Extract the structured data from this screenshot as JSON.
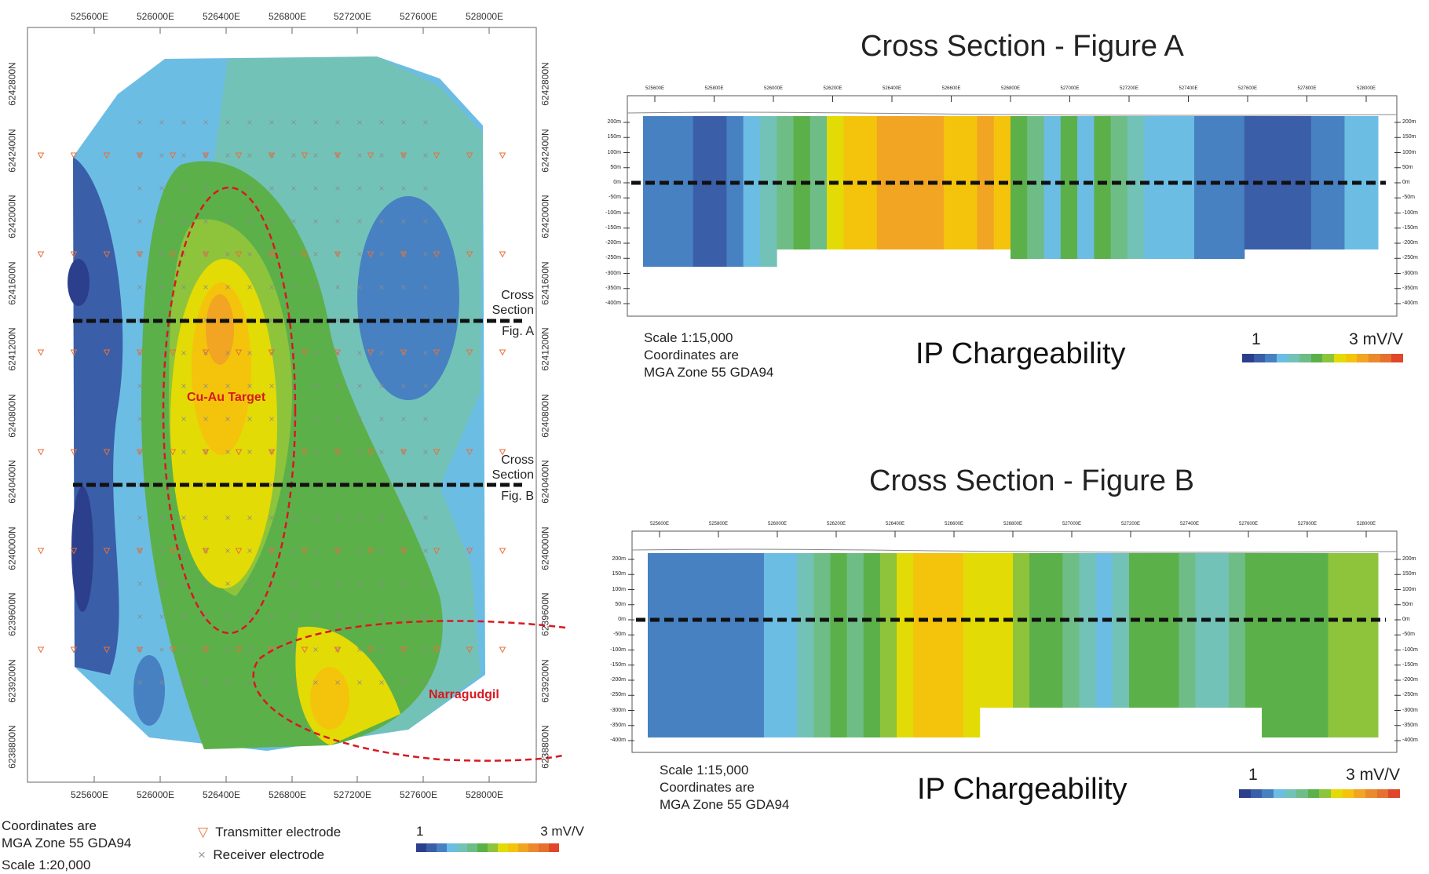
{
  "map": {
    "eastings": [
      "525600E",
      "526000E",
      "526400E",
      "526800E",
      "527200E",
      "527600E",
      "528000E"
    ],
    "northings": [
      "6242800N",
      "6242400N",
      "6242000N",
      "6241600N",
      "6241200N",
      "6240800N",
      "6240400N",
      "6240000N",
      "6239600N",
      "6239200N",
      "6238800N"
    ],
    "target_label": "Cu-Au Target",
    "prospect_label": "Narragudgil",
    "section_a": [
      "Cross",
      "Section",
      "Fig. A"
    ],
    "section_b": [
      "Cross",
      "Section",
      "Fig. B"
    ],
    "coords_note": [
      "Coordinates are",
      "MGA Zone 55 GDA94"
    ],
    "scale": "Scale 1:20,000",
    "legend": {
      "transmitter": "Transmitter electrode",
      "receiver": "Receiver electrode",
      "transmitter_symbol": "▽",
      "receiver_symbol": "×"
    },
    "colorbar": {
      "min": "1",
      "max": "3 mV/V"
    }
  },
  "colors": {
    "scale": [
      "#2c3f8c",
      "#3a5ea8",
      "#4781c2",
      "#6cbde4",
      "#73c2b8",
      "#6fbd86",
      "#5cb04a",
      "#8dc43c",
      "#e3db05",
      "#f4c40c",
      "#f1a522",
      "#ea8a2c",
      "#e6702e",
      "#e0462a"
    ],
    "target": "#d71920"
  },
  "figure_a": {
    "title": "Cross Section - Figure A",
    "eastings": [
      "525600E",
      "525800E",
      "526000E",
      "526200E",
      "526400E",
      "526600E",
      "526800E",
      "527000E",
      "527200E",
      "527400E",
      "527600E",
      "527800E",
      "528000E"
    ],
    "depths": [
      "200m",
      "150m",
      "100m",
      "50m",
      "0m",
      "-50m",
      "-100m",
      "-150m",
      "-200m",
      "-250m",
      "-300m",
      "-350m",
      "-400m"
    ],
    "scale": "Scale 1:15,000",
    "coords_note": [
      "Coordinates are",
      "MGA Zone 55 GDA94"
    ],
    "heading": "IP Chargeability",
    "colorbar": {
      "min": "1",
      "max": "3 mV/V"
    }
  },
  "figure_b": {
    "title": "Cross Section - Figure B",
    "eastings": [
      "525600E",
      "525800E",
      "526000E",
      "526200E",
      "526400E",
      "526600E",
      "526800E",
      "527000E",
      "527200E",
      "527400E",
      "527600E",
      "527800E",
      "528000E"
    ],
    "depths": [
      "200m",
      "150m",
      "100m",
      "50m",
      "0m",
      "-50m",
      "-100m",
      "-150m",
      "-200m",
      "-250m",
      "-300m",
      "-350m",
      "-400m"
    ],
    "scale": "Scale 1:15,000",
    "coords_note": [
      "Coordinates are",
      "MGA Zone 55 GDA94"
    ],
    "heading": "IP Chargeability",
    "colorbar": {
      "min": "1",
      "max": "3 mV/V"
    }
  }
}
